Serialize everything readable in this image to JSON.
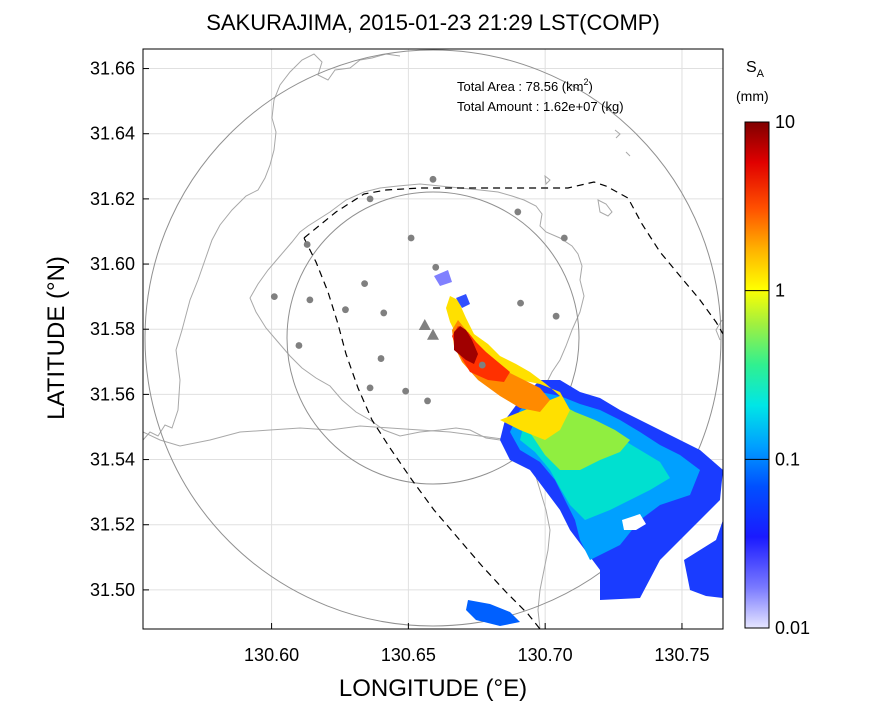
{
  "title": "SAKURAJIMA, 2015-01-23 21:29 LST(COMP)",
  "xlabel": "LONGITUDE (°E)",
  "ylabel": "LATITUDE (°N)",
  "x_ticks": [
    "130.60",
    "130.65",
    "130.70",
    "130.75"
  ],
  "y_ticks": [
    "31.66",
    "31.64",
    "31.62",
    "31.60",
    "31.58",
    "31.56",
    "31.54",
    "31.52",
    "31.50"
  ],
  "stats": {
    "area_label": "Total Area   : 78.56 (km",
    "area_sup": "2",
    "area_close": ")",
    "amount_label": "Total Amount : 1.62e+07 (kg)"
  },
  "colorbar": {
    "symbol": "S",
    "subscript": "A",
    "unit": "(mm)",
    "ticks": [
      "10",
      "1",
      "0.1",
      "0.01"
    ],
    "scale": "log"
  },
  "map_data": {
    "lon_range": [
      130.553,
      130.765
    ],
    "lat_range": [
      31.488,
      31.666
    ],
    "grid": true,
    "vent_markers": [
      [
        130.656,
        31.581
      ],
      [
        130.659,
        31.578
      ]
    ],
    "stations": [
      [
        130.659,
        31.626
      ],
      [
        130.636,
        31.62
      ],
      [
        130.69,
        31.616
      ],
      [
        130.613,
        31.606
      ],
      [
        130.651,
        31.608
      ],
      [
        130.707,
        31.608
      ],
      [
        130.66,
        31.599
      ],
      [
        130.601,
        31.59
      ],
      [
        130.614,
        31.589
      ],
      [
        130.634,
        31.594
      ],
      [
        130.691,
        31.588
      ],
      [
        130.627,
        31.586
      ],
      [
        130.641,
        31.585
      ],
      [
        130.704,
        31.584
      ],
      [
        130.61,
        31.575
      ],
      [
        130.64,
        31.571
      ],
      [
        130.677,
        31.569
      ],
      [
        130.636,
        31.562
      ],
      [
        130.649,
        31.561
      ],
      [
        130.657,
        31.558
      ]
    ],
    "colors": {
      "grid": "#e0e0e0",
      "coast": "#a8a8a8",
      "range_ring": "#909090",
      "marker": "#808080"
    }
  }
}
